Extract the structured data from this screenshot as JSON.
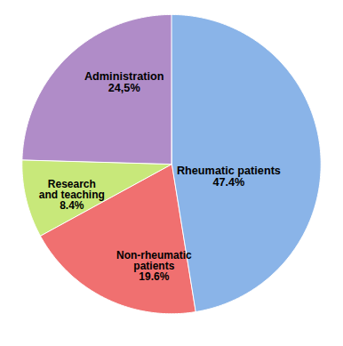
{
  "chart_data": {
    "type": "pie",
    "categories": [
      "Rheumatic patients",
      "Non-rheumatic\npatients",
      "Research\nand teaching",
      "Administration"
    ],
    "values": [
      47.4,
      19.6,
      8.4,
      24.5
    ],
    "value_labels": [
      "47.4%",
      "19.6%",
      "8.4%",
      "24,5%"
    ],
    "colors": [
      "#8ab4e8",
      "#f07070",
      "#c8e87a",
      "#b08cc8"
    ],
    "data_labels": true
  }
}
